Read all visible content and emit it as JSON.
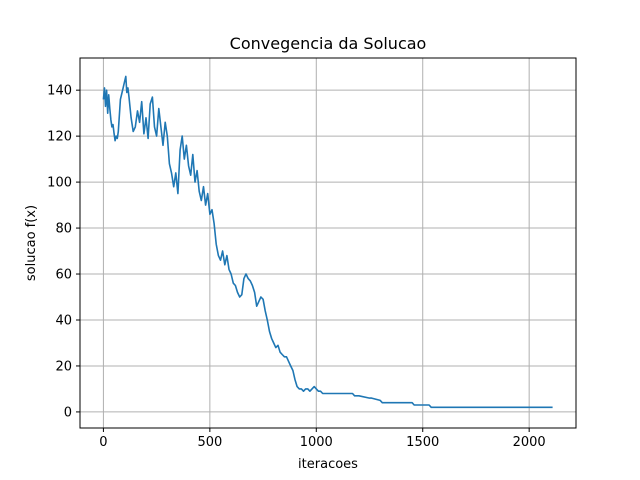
{
  "chart_data": {
    "type": "line",
    "title": "Convegencia da Solucao",
    "xlabel": "iteracoes",
    "ylabel": "solucao f(x)",
    "xlim": [
      -110,
      2220
    ],
    "ylim": [
      -7,
      154
    ],
    "xticks": [
      0,
      500,
      1000,
      1500,
      2000
    ],
    "yticks": [
      0,
      20,
      40,
      60,
      80,
      100,
      120,
      140
    ],
    "grid": true,
    "line_color": "#1f77b4",
    "series": [
      {
        "name": "",
        "x": [
          0,
          5,
          10,
          15,
          20,
          25,
          30,
          35,
          40,
          45,
          50,
          55,
          60,
          65,
          70,
          80,
          90,
          100,
          105,
          110,
          115,
          120,
          130,
          140,
          150,
          160,
          170,
          180,
          190,
          200,
          210,
          220,
          230,
          240,
          250,
          260,
          270,
          280,
          290,
          300,
          310,
          320,
          330,
          340,
          350,
          360,
          370,
          380,
          390,
          400,
          410,
          420,
          430,
          440,
          450,
          460,
          470,
          480,
          490,
          500,
          510,
          520,
          530,
          540,
          550,
          560,
          570,
          580,
          590,
          600,
          610,
          620,
          630,
          640,
          650,
          660,
          670,
          680,
          690,
          700,
          710,
          720,
          730,
          740,
          750,
          760,
          770,
          780,
          790,
          800,
          810,
          820,
          830,
          840,
          850,
          860,
          870,
          880,
          890,
          900,
          910,
          920,
          930,
          940,
          950,
          960,
          970,
          980,
          990,
          1000,
          1010,
          1020,
          1030,
          1050,
          1080,
          1100,
          1150,
          1170,
          1180,
          1200,
          1250,
          1260,
          1300,
          1310,
          1350,
          1400,
          1450,
          1460,
          1500,
          1530,
          1540,
          1600,
          1700,
          1800,
          1900,
          2000,
          2050,
          2110
        ],
        "values": [
          136,
          141,
          133,
          140,
          130,
          138,
          132,
          127,
          124,
          125,
          121,
          118,
          120,
          119,
          122,
          136,
          140,
          144,
          146,
          139,
          141,
          137,
          128,
          122,
          124,
          131,
          126,
          135,
          121,
          128,
          119,
          134,
          137,
          124,
          120,
          132,
          124,
          116,
          126,
          120,
          108,
          104,
          98,
          104,
          95,
          114,
          120,
          110,
          116,
          107,
          103,
          112,
          100,
          105,
          96,
          92,
          98,
          90,
          95,
          86,
          88,
          82,
          73,
          68,
          66,
          70,
          64,
          68,
          62,
          60,
          56,
          55,
          52,
          50,
          51,
          58,
          60,
          58,
          57,
          55,
          52,
          46,
          48,
          50,
          49,
          44,
          40,
          35,
          32,
          30,
          28,
          29,
          26,
          25,
          24,
          24,
          22,
          20,
          18,
          14,
          11,
          10,
          10,
          9,
          10,
          10,
          9,
          10,
          11,
          10,
          9,
          9,
          8,
          8,
          8,
          8,
          8,
          8,
          7,
          7,
          6,
          6,
          5,
          4,
          4,
          4,
          4,
          3,
          3,
          3,
          2,
          2,
          2,
          2,
          2,
          2,
          2,
          2
        ]
      }
    ]
  }
}
